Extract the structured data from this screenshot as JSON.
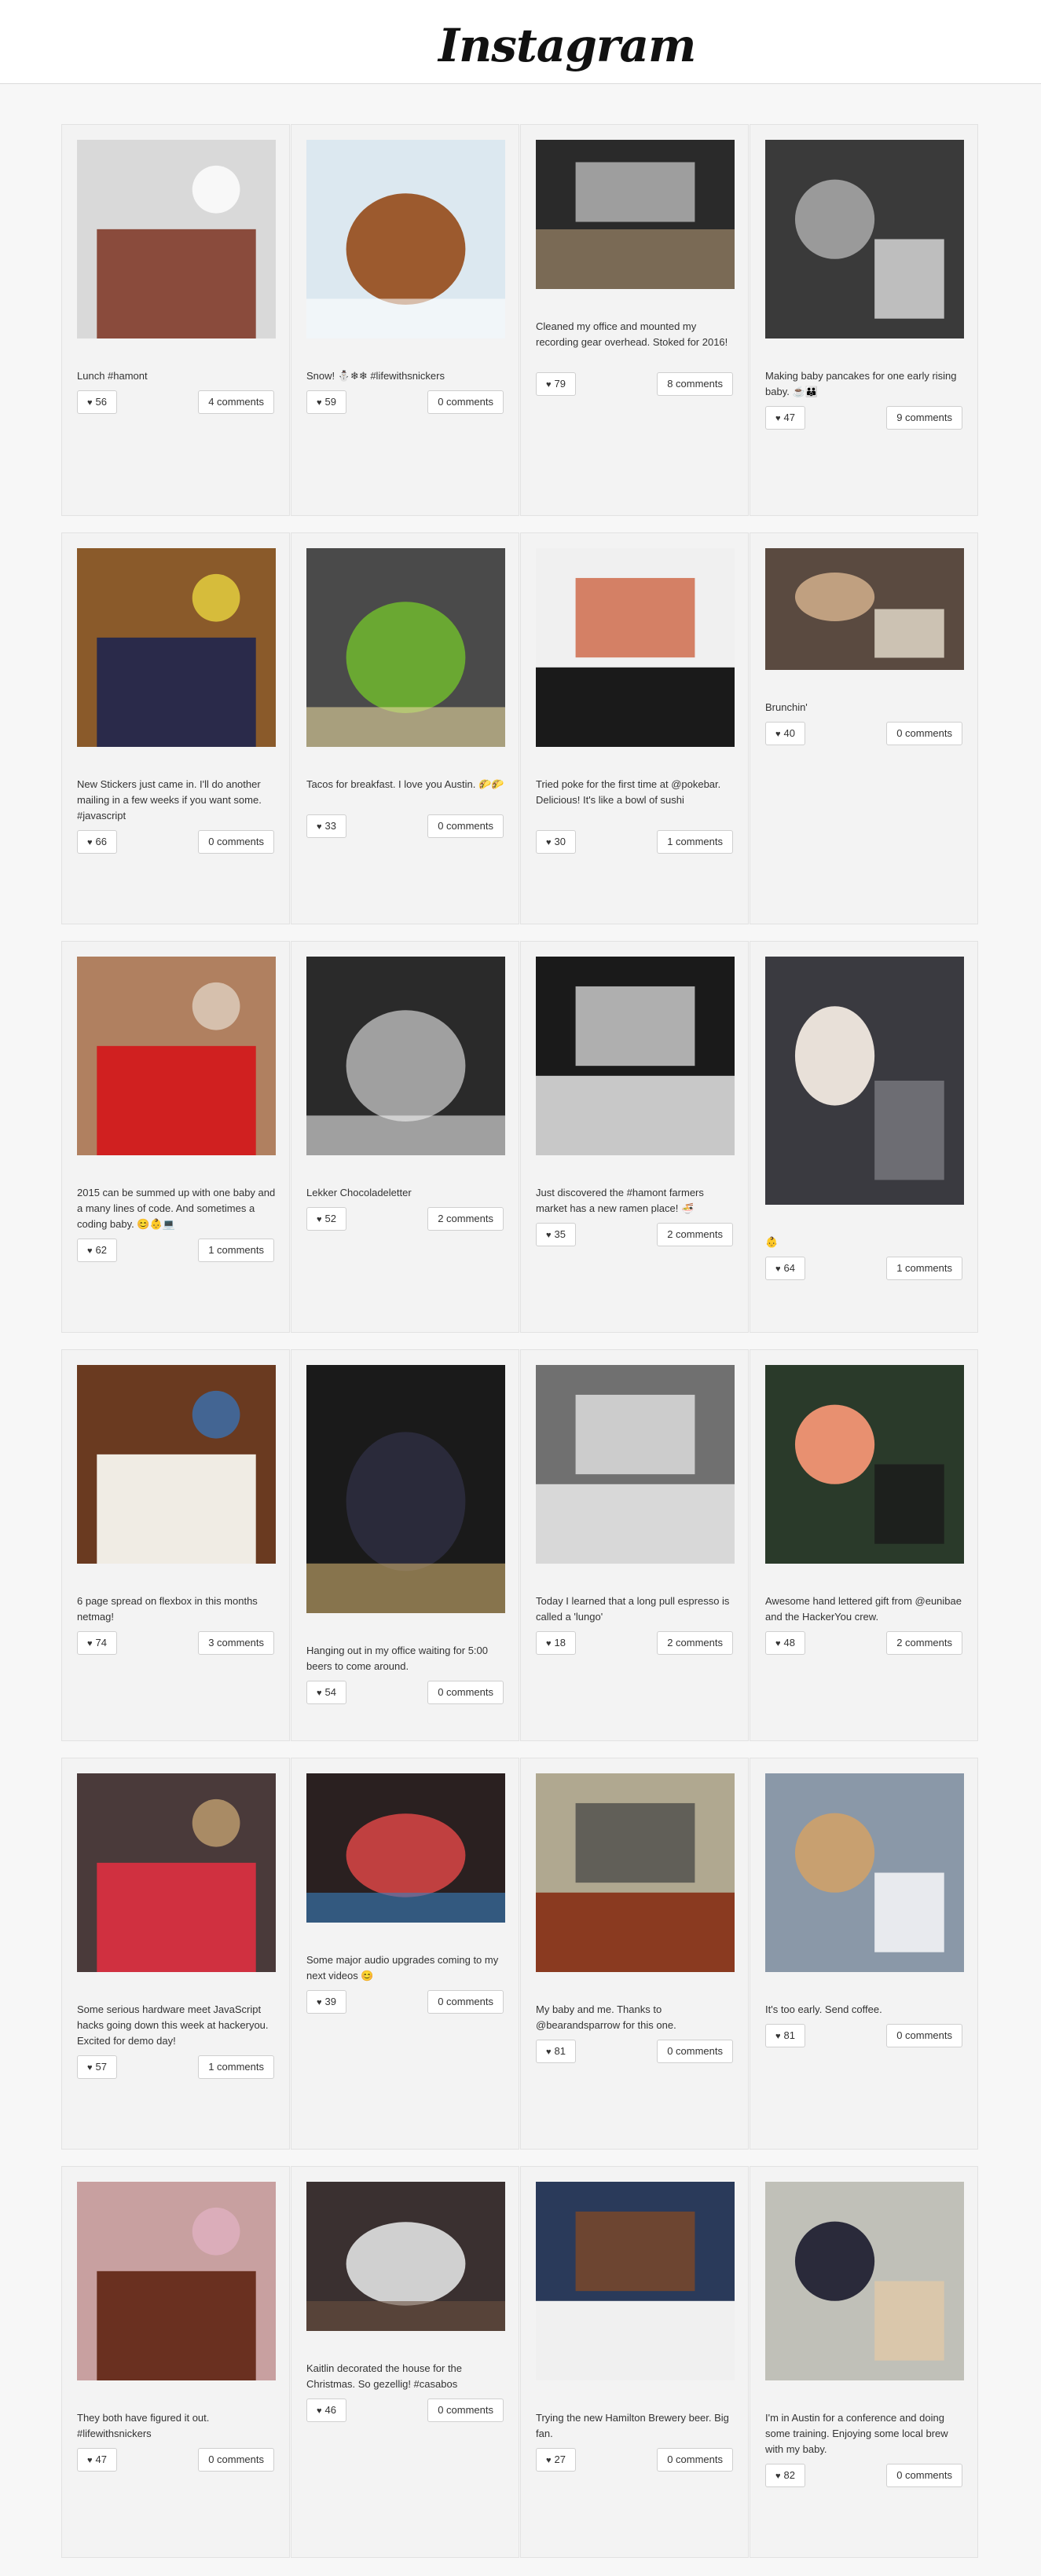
{
  "header": {
    "brand": "Instagram",
    "icon": "camera-icon"
  },
  "posts": [
    {
      "caption": "Lunch #hamont",
      "likes": "56",
      "comments": "4 comments",
      "colors": [
        "#d9d9d9",
        "#8a4b3c",
        "#ffffff"
      ]
    },
    {
      "caption": "Snow! ⛄❄❄ #lifewithsnickers",
      "likes": "59",
      "comments": "0 comments",
      "colors": [
        "#dce8f0",
        "#9c5a2e",
        "#ffffff"
      ]
    },
    {
      "caption": "Cleaned my office and mounted my recording gear overhead. Stoked for 2016!",
      "likes": "79",
      "comments": "8 comments",
      "colors": [
        "#2a2a2a",
        "#7a6a55",
        "#d0d0d0"
      ]
    },
    {
      "caption": "Making baby pancakes for one early rising baby. ☕👪",
      "likes": "47",
      "comments": "9 comments",
      "colors": [
        "#3a3a3a",
        "#9a9a9a",
        "#e0e0e0"
      ]
    },
    {
      "caption": "New Stickers just came in. I'll do another mailing in a few weeks if you want some. #javascript",
      "likes": "66",
      "comments": "0 comments",
      "colors": [
        "#8a5a2a",
        "#2a2a4a",
        "#e8d440"
      ]
    },
    {
      "caption": "Tacos for breakfast. I love you Austin. 🌮🌮",
      "likes": "33",
      "comments": "0 comments",
      "colors": [
        "#4a4a4a",
        "#6aa832",
        "#e8d8a0"
      ]
    },
    {
      "caption": "Tried poke for the first time at @pokebar. Delicious! It's like a bowl of sushi",
      "likes": "30",
      "comments": "1 comments",
      "colors": [
        "#f0f0f0",
        "#1a1a1a",
        "#c8502a"
      ]
    },
    {
      "caption": "Brunchin'",
      "likes": "40",
      "comments": "0 comments",
      "colors": [
        "#5a4a40",
        "#c0a080",
        "#e8e0d0"
      ]
    },
    {
      "caption": "2015 can be summed up with one baby and a many lines of code. And sometimes a coding baby. 😊👶💻",
      "likes": "62",
      "comments": "1 comments",
      "colors": [
        "#b08060",
        "#d02020",
        "#e0d0c0"
      ]
    },
    {
      "caption": "Lekker Chocoladeletter",
      "likes": "52",
      "comments": "2 comments",
      "colors": [
        "#2a2a2a",
        "#a0a0a0",
        "#f0f0f0"
      ]
    },
    {
      "caption": "Just discovered the #hamont farmers market has a new ramen place! 🍜",
      "likes": "35",
      "comments": "2 comments",
      "colors": [
        "#1a1a1a",
        "#c8c8c8",
        "#f0f0f0"
      ]
    },
    {
      "caption": "👶",
      "likes": "64",
      "comments": "1 comments",
      "colors": [
        "#3a3a40",
        "#e8e0d8",
        "#7a7a80"
      ]
    },
    {
      "caption": "6 page spread on flexbox in this months netmag!",
      "likes": "74",
      "comments": "3 comments",
      "colors": [
        "#6a3a20",
        "#f0ece4",
        "#3a70b0"
      ]
    },
    {
      "caption": "Hanging out in my office waiting for 5:00 beers to come around.",
      "likes": "54",
      "comments": "0 comments",
      "colors": [
        "#1a1a1a",
        "#2a2a3a",
        "#d0b070"
      ]
    },
    {
      "caption": "Today I learned that a long pull espresso is called a 'lungo'",
      "likes": "18",
      "comments": "2 comments",
      "colors": [
        "#707070",
        "#d8d8d8",
        "#f4f4f4"
      ]
    },
    {
      "caption": "Awesome hand lettered gift from @eunibae and the HackerYou crew.",
      "likes": "48",
      "comments": "2 comments",
      "colors": [
        "#2a3a2a",
        "#e89070",
        "#1a1a1a"
      ]
    },
    {
      "caption": "Some serious hardware meet JavaScript hacks going down this week at hackeryou. Excited for demo day!",
      "likes": "57",
      "comments": "1 comments",
      "colors": [
        "#4a3a3a",
        "#d03040",
        "#c0a070"
      ]
    },
    {
      "caption": "Some major audio upgrades coming to my next videos 😊",
      "likes": "39",
      "comments": "0 comments",
      "colors": [
        "#2a2020",
        "#c04040",
        "#3a80c0"
      ]
    },
    {
      "caption": "My baby and me. Thanks to @bearandsparrow for this one.",
      "likes": "81",
      "comments": "0 comments",
      "colors": [
        "#b0a890",
        "#8a3a20",
        "#404040"
      ]
    },
    {
      "caption": "It's too early. Send coffee.",
      "likes": "81",
      "comments": "0 comments",
      "colors": [
        "#8a98a8",
        "#c8a070",
        "#ffffff"
      ]
    },
    {
      "caption": "They both have figured it out. #lifewithsnickers",
      "likes": "47",
      "comments": "0 comments",
      "colors": [
        "#c8a0a0",
        "#6a3020",
        "#e0b0c0"
      ]
    },
    {
      "caption": "Kaitlin decorated the house for the Christmas. So gezellig! #casabos",
      "likes": "46",
      "comments": "0 comments",
      "colors": [
        "#3a3030",
        "#d0d0d0",
        "#6a5040"
      ]
    },
    {
      "caption": "Trying the new Hamilton Brewery beer. Big fan.",
      "likes": "27",
      "comments": "0 comments",
      "colors": [
        "#2a3a5a",
        "#f0f0f0",
        "#8a4a20"
      ]
    },
    {
      "caption": "I'm in Austin for a conference and doing some training. Enjoying some local brew with my baby.",
      "likes": "82",
      "comments": "0 comments",
      "colors": [
        "#c0c0b8",
        "#2a2a3a",
        "#e0c8a8"
      ]
    }
  ]
}
